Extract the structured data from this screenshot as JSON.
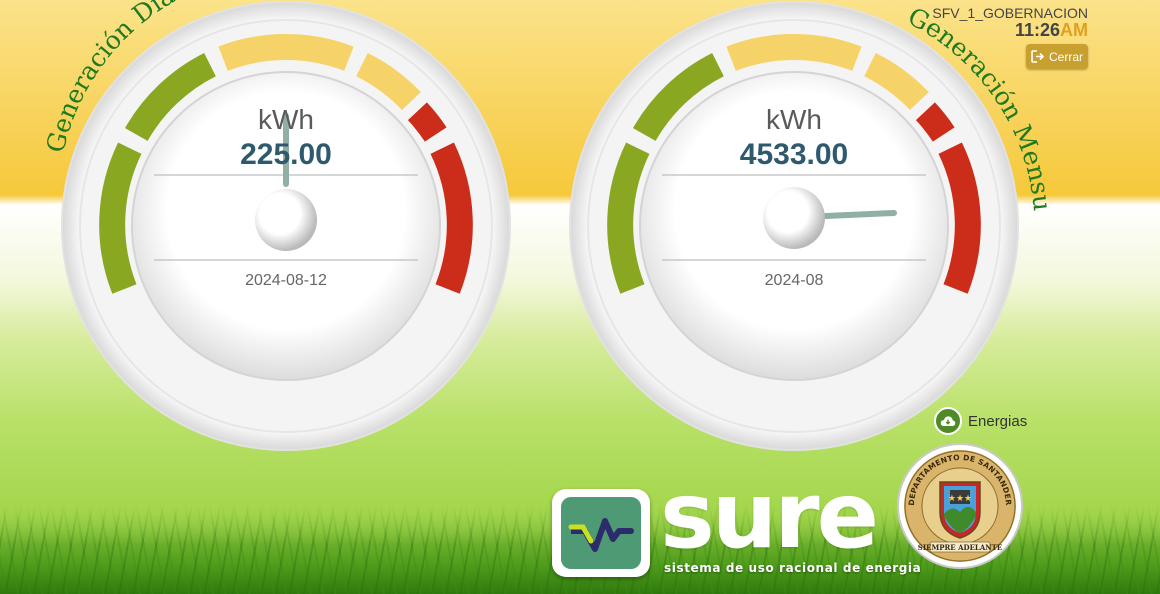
{
  "header": {
    "username": "SFV_1_GOBERNACION",
    "time": "11:26",
    "ampm": "AM",
    "logout_label": "Cerrar",
    "logout_icon": "sign-out-icon"
  },
  "gauges": {
    "daily": {
      "title": "Generación Diaria",
      "unit": "kWh",
      "value": "225.00",
      "date": "2024-08-12"
    },
    "monthly": {
      "title": "Generación Mensual",
      "unit": "kWh",
      "value": "4533.00",
      "date": "2024-08"
    }
  },
  "energias": {
    "label": "Energias",
    "icon": "cloud-download-icon"
  },
  "branding": {
    "sure_wordmark": "sure",
    "sure_tagline": "sistema de uso racional de energia",
    "seal_top_text": "DEPARTAMENTO DE SANTANDER",
    "seal_motto": "SIEMPRE ADELANTE"
  },
  "colors": {
    "gauge_green": "#8aa722",
    "gauge_yellow": "#f6d368",
    "gauge_red": "#cc2d1b",
    "title_green": "#1f7a1f",
    "value_text": "#2f5a6e",
    "logout_button": "#c8a030",
    "ampm_accent": "#e0a020"
  }
}
